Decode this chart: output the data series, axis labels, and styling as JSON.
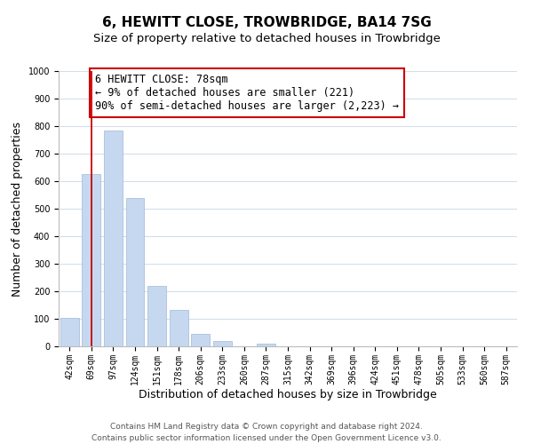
{
  "title": "6, HEWITT CLOSE, TROWBRIDGE, BA14 7SG",
  "subtitle": "Size of property relative to detached houses in Trowbridge",
  "xlabel": "Distribution of detached houses by size in Trowbridge",
  "ylabel": "Number of detached properties",
  "bar_labels": [
    "42sqm",
    "69sqm",
    "97sqm",
    "124sqm",
    "151sqm",
    "178sqm",
    "206sqm",
    "233sqm",
    "260sqm",
    "287sqm",
    "315sqm",
    "342sqm",
    "369sqm",
    "396sqm",
    "424sqm",
    "451sqm",
    "478sqm",
    "505sqm",
    "533sqm",
    "560sqm",
    "587sqm"
  ],
  "bar_values": [
    103,
    625,
    783,
    540,
    220,
    133,
    44,
    18,
    0,
    10,
    0,
    0,
    0,
    0,
    0,
    0,
    0,
    0,
    0,
    0,
    0
  ],
  "bar_color": "#c5d8f0",
  "bar_edge_color": "#a0b8d8",
  "vline_x": 1.0,
  "vline_color": "#cc0000",
  "ylim": [
    0,
    1000
  ],
  "yticks": [
    0,
    100,
    200,
    300,
    400,
    500,
    600,
    700,
    800,
    900,
    1000
  ],
  "annotation_box_text_line1": "6 HEWITT CLOSE: 78sqm",
  "annotation_box_text_line2": "← 9% of detached houses are smaller (221)",
  "annotation_box_text_line3": "90% of semi-detached houses are larger (2,223) →",
  "annotation_box_color": "#ffffff",
  "annotation_box_edge_color": "#cc0000",
  "footer_line1": "Contains HM Land Registry data © Crown copyright and database right 2024.",
  "footer_line2": "Contains public sector information licensed under the Open Government Licence v3.0.",
  "background_color": "#ffffff",
  "grid_color": "#d0dce8",
  "title_fontsize": 11,
  "subtitle_fontsize": 9.5,
  "axis_label_fontsize": 9,
  "tick_fontsize": 7,
  "annotation_fontsize": 8.5,
  "footer_fontsize": 6.5
}
